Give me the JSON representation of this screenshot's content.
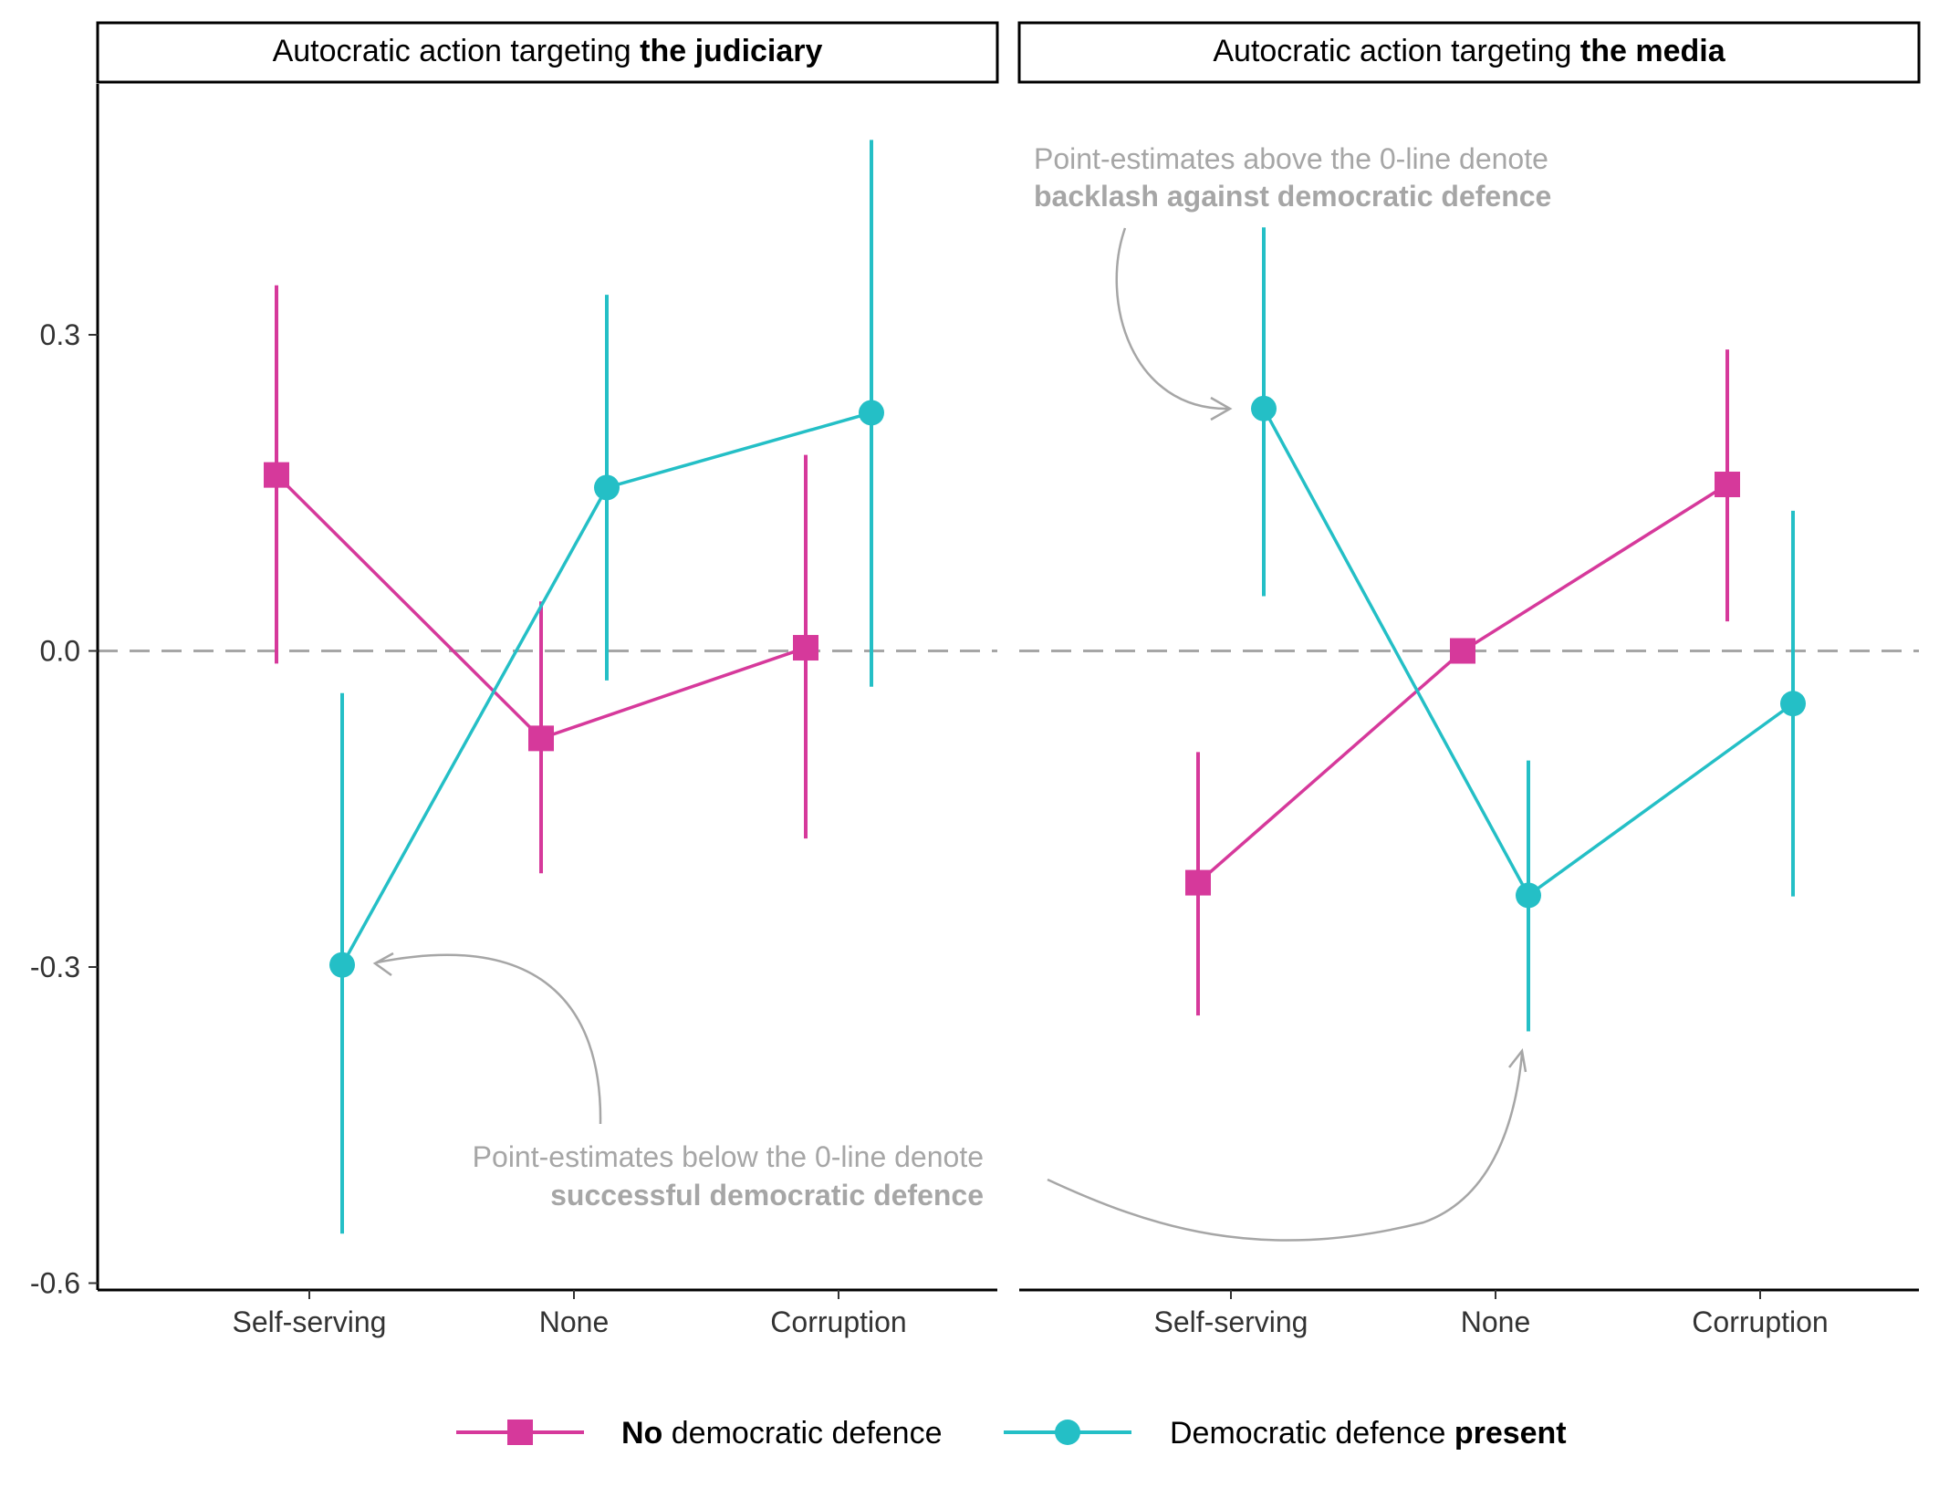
{
  "chart_data": {
    "type": "line",
    "y_ticks": [
      -0.6,
      -0.3,
      0.0,
      0.3
    ],
    "y_tick_labels": [
      "-0.6",
      "-0.3",
      "0.0",
      "0.3"
    ],
    "ylim": [
      -0.61,
      0.5
    ],
    "categories": [
      "Self-serving",
      "None",
      "Corruption"
    ],
    "reference_line": 0,
    "colors": {
      "no_defence": "#D6399B",
      "defence": "#24BFC6"
    },
    "legend": {
      "position": "bottom",
      "entries": [
        {
          "key": "no_defence",
          "bold": "No",
          "rest": " democratic defence"
        },
        {
          "key": "defence",
          "rest": "Democratic defence ",
          "bold": "present"
        }
      ]
    },
    "panels": [
      {
        "title_prefix": "Autocratic action targeting ",
        "title_bold": "the judiciary",
        "series": [
          {
            "key": "no_defence",
            "marker": "square",
            "points": [
              {
                "x": "Self-serving",
                "y": 0.167,
                "lo": -0.012,
                "hi": 0.347
              },
              {
                "x": "None",
                "y": -0.083,
                "lo": -0.211,
                "hi": 0.047
              },
              {
                "x": "Corruption",
                "y": 0.003,
                "lo": -0.178,
                "hi": 0.186
              }
            ]
          },
          {
            "key": "defence",
            "marker": "circle",
            "points": [
              {
                "x": "Self-serving",
                "y": -0.298,
                "lo": -0.553,
                "hi": -0.04
              },
              {
                "x": "None",
                "y": 0.155,
                "lo": -0.028,
                "hi": 0.338
              },
              {
                "x": "Corruption",
                "y": 0.226,
                "lo": -0.034,
                "hi": 0.485
              }
            ]
          }
        ],
        "annotation": {
          "line1": "Point-estimates below the 0-line denote",
          "line2": "successful democratic defence"
        }
      },
      {
        "title_prefix": "Autocratic action targeting ",
        "title_bold": "the media",
        "series": [
          {
            "key": "no_defence",
            "marker": "square",
            "points": [
              {
                "x": "Self-serving",
                "y": -0.22,
                "lo": -0.346,
                "hi": -0.096
              },
              {
                "x": "None",
                "y": 0.0,
                "lo": 0.0,
                "hi": 0.0
              },
              {
                "x": "Corruption",
                "y": 0.158,
                "lo": 0.028,
                "hi": 0.286
              }
            ]
          },
          {
            "key": "defence",
            "marker": "circle",
            "points": [
              {
                "x": "Self-serving",
                "y": 0.23,
                "lo": 0.052,
                "hi": 0.402
              },
              {
                "x": "None",
                "y": -0.232,
                "lo": -0.361,
                "hi": -0.104
              },
              {
                "x": "Corruption",
                "y": -0.05,
                "lo": -0.233,
                "hi": 0.133
              }
            ]
          }
        ],
        "annotation": {
          "line1": "Point-estimates above the 0-line denote",
          "line2": "backlash against democratic defence"
        }
      }
    ]
  }
}
